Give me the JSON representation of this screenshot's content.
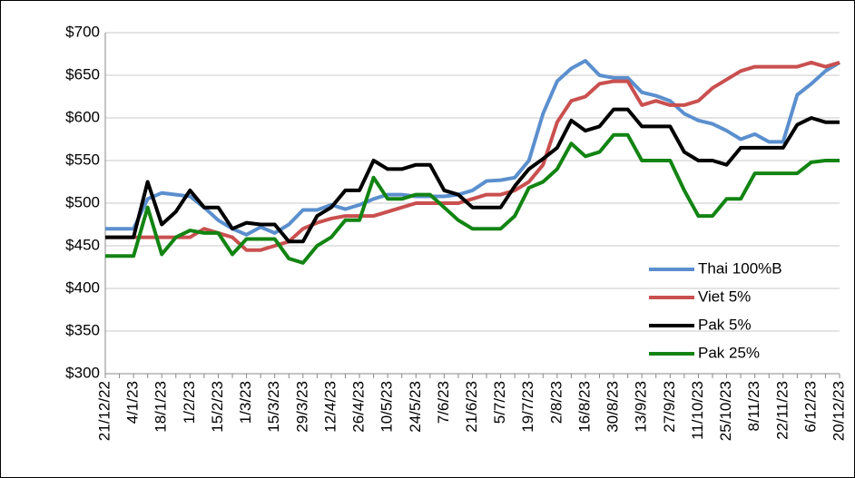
{
  "chart_data": {
    "type": "line",
    "categories": [
      "21/12/22",
      null,
      "4/1/23",
      null,
      "18/1/23",
      null,
      "1/2/23",
      null,
      "15/2/23",
      null,
      "1/3/23",
      null,
      "15/3/23",
      null,
      "29/3/23",
      null,
      "12/4/23",
      null,
      "26/4/23",
      null,
      "10/5/23",
      null,
      "24/5/23",
      null,
      "7/6/23",
      null,
      "21/6/23",
      null,
      "5/7/23",
      null,
      "19/7/23",
      null,
      "2/8/23",
      null,
      "16/8/23",
      null,
      "30/8/23",
      null,
      "13/9/23",
      null,
      "27/9/23",
      null,
      "11/10/23",
      null,
      "25/10/23",
      null,
      "8/11/23",
      null,
      "22/11/23",
      null,
      "6/12/23",
      null,
      "20/12/23"
    ],
    "series": [
      {
        "name": "Thai 100%B",
        "color": "#5b8fce",
        "values": [
          470,
          470,
          470,
          505,
          512,
          510,
          508,
          495,
          480,
          470,
          463,
          472,
          465,
          475,
          492,
          492,
          498,
          493,
          498,
          505,
          510,
          510,
          508,
          508,
          508,
          510,
          515,
          526,
          527,
          530,
          550,
          605,
          643,
          658,
          667,
          650,
          647,
          647,
          630,
          626,
          620,
          605,
          597,
          593,
          585,
          575,
          581,
          572,
          572,
          627,
          640,
          655,
          665
        ]
      },
      {
        "name": "Viet 5%",
        "color": "#c9504f",
        "values": [
          460,
          460,
          460,
          460,
          460,
          460,
          460,
          470,
          465,
          460,
          445,
          445,
          450,
          455,
          470,
          477,
          482,
          485,
          485,
          485,
          490,
          495,
          500,
          500,
          500,
          500,
          505,
          510,
          510,
          515,
          525,
          545,
          595,
          620,
          625,
          640,
          643,
          643,
          615,
          620,
          615,
          615,
          620,
          635,
          645,
          655,
          660,
          660,
          660,
          660,
          665,
          660,
          665
        ]
      },
      {
        "name": "Pak 5%",
        "color": "#000000",
        "values": [
          460,
          460,
          460,
          525,
          475,
          490,
          515,
          495,
          495,
          470,
          477,
          475,
          475,
          455,
          455,
          485,
          495,
          515,
          515,
          550,
          540,
          540,
          545,
          545,
          515,
          510,
          495,
          495,
          495,
          520,
          540,
          552,
          565,
          597,
          585,
          590,
          610,
          610,
          590,
          590,
          590,
          560,
          550,
          550,
          545,
          565,
          565,
          565,
          565,
          592,
          600,
          595,
          595
        ]
      },
      {
        "name": "Pak 25%",
        "color": "#128412",
        "values": [
          438,
          438,
          438,
          495,
          440,
          460,
          468,
          465,
          465,
          440,
          458,
          458,
          458,
          435,
          430,
          450,
          460,
          480,
          480,
          530,
          505,
          505,
          510,
          510,
          495,
          480,
          470,
          470,
          470,
          485,
          518,
          525,
          540,
          570,
          555,
          560,
          580,
          580,
          550,
          550,
          550,
          515,
          485,
          485,
          505,
          505,
          535,
          535,
          535,
          535,
          548,
          550,
          550
        ]
      }
    ],
    "ylim": [
      300,
      700
    ],
    "yticks": [
      {
        "value": 300,
        "label": "$300"
      },
      {
        "value": 350,
        "label": "$350"
      },
      {
        "value": 400,
        "label": "$400"
      },
      {
        "value": 450,
        "label": "$450"
      },
      {
        "value": 500,
        "label": "$500"
      },
      {
        "value": 550,
        "label": "$550"
      },
      {
        "value": 600,
        "label": "$600"
      },
      {
        "value": 650,
        "label": "$650"
      },
      {
        "value": 700,
        "label": "$700"
      }
    ],
    "grid": true,
    "legend": "right"
  }
}
